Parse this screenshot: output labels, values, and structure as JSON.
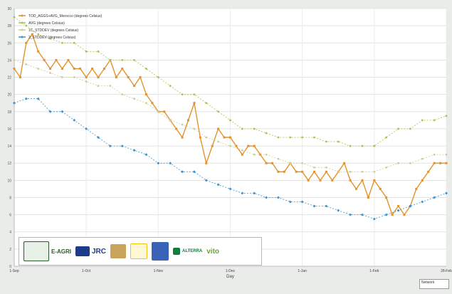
{
  "chart_data": {
    "type": "line",
    "xlabel": "Day",
    "ylabel": "",
    "ylim": [
      0,
      30
    ],
    "x_ticks": [
      "1-Sep",
      "1-Oct",
      "1-Nov",
      "1-Dec",
      "1-Jan",
      "1-Feb",
      "28-Feb"
    ],
    "y_ticks": [
      "0",
      "2",
      "4",
      "6",
      "8",
      "10",
      "12",
      "14",
      "16",
      "18",
      "20",
      "22",
      "24",
      "26",
      "28",
      "30"
    ],
    "grid": true,
    "legend_position": "top-left",
    "series": [
      {
        "name": "TOD_AGGS+AVG_Morocco (degrees Celsius)",
        "color": "#e3922c",
        "marker": "square",
        "points": [
          [
            0,
            23
          ],
          [
            4,
            22
          ],
          [
            8,
            26
          ],
          [
            12,
            27
          ],
          [
            16,
            25
          ],
          [
            20,
            24
          ],
          [
            24,
            23
          ],
          [
            28,
            24
          ],
          [
            32,
            23
          ],
          [
            36,
            24
          ],
          [
            40,
            23
          ],
          [
            44,
            23
          ],
          [
            48,
            22
          ],
          [
            52,
            23
          ],
          [
            56,
            22
          ],
          [
            60,
            23
          ],
          [
            64,
            24
          ],
          [
            68,
            22
          ],
          [
            72,
            23
          ],
          [
            76,
            22
          ],
          [
            80,
            21
          ],
          [
            84,
            22
          ],
          [
            88,
            20
          ],
          [
            92,
            19
          ],
          [
            96,
            18
          ],
          [
            100,
            18
          ],
          [
            104,
            17
          ],
          [
            108,
            16
          ],
          [
            112,
            15
          ],
          [
            116,
            17
          ],
          [
            120,
            19
          ],
          [
            124,
            15
          ],
          [
            128,
            12
          ],
          [
            132,
            14
          ],
          [
            136,
            16
          ],
          [
            140,
            15
          ],
          [
            144,
            15
          ],
          [
            148,
            14
          ],
          [
            152,
            13
          ],
          [
            156,
            14
          ],
          [
            160,
            14
          ],
          [
            164,
            13
          ],
          [
            168,
            12
          ],
          [
            172,
            12
          ],
          [
            176,
            11
          ],
          [
            180,
            11
          ],
          [
            184,
            12
          ],
          [
            188,
            11
          ],
          [
            192,
            11
          ],
          [
            196,
            10
          ],
          [
            200,
            11
          ],
          [
            204,
            10
          ],
          [
            208,
            11
          ],
          [
            212,
            10
          ],
          [
            216,
            11
          ],
          [
            220,
            12
          ],
          [
            224,
            10
          ],
          [
            228,
            9
          ],
          [
            232,
            10
          ],
          [
            236,
            8
          ],
          [
            240,
            10
          ],
          [
            244,
            9
          ],
          [
            248,
            8
          ],
          [
            252,
            6
          ],
          [
            256,
            7
          ],
          [
            260,
            6
          ],
          [
            264,
            7
          ],
          [
            268,
            9
          ],
          [
            272,
            10
          ],
          [
            276,
            11
          ],
          [
            280,
            12
          ],
          [
            284,
            12
          ],
          [
            288,
            12
          ]
        ]
      },
      {
        "name": "AVG (degrees Celsius)",
        "color": "#a9c24f",
        "marker": "circle",
        "points": [
          [
            0,
            29
          ],
          [
            8,
            28
          ],
          [
            16,
            27
          ],
          [
            24,
            26.5
          ],
          [
            32,
            26
          ],
          [
            40,
            26
          ],
          [
            48,
            25
          ],
          [
            56,
            25
          ],
          [
            64,
            24
          ],
          [
            72,
            24
          ],
          [
            80,
            24
          ],
          [
            88,
            23
          ],
          [
            96,
            22
          ],
          [
            104,
            21
          ],
          [
            112,
            20
          ],
          [
            120,
            20
          ],
          [
            128,
            19
          ],
          [
            136,
            18
          ],
          [
            144,
            17
          ],
          [
            152,
            16
          ],
          [
            160,
            16
          ],
          [
            168,
            15.5
          ],
          [
            176,
            15
          ],
          [
            184,
            15
          ],
          [
            192,
            15
          ],
          [
            200,
            15
          ],
          [
            208,
            14.5
          ],
          [
            216,
            14.5
          ],
          [
            224,
            14
          ],
          [
            232,
            14
          ],
          [
            240,
            14
          ],
          [
            248,
            15
          ],
          [
            256,
            16
          ],
          [
            264,
            16
          ],
          [
            272,
            17
          ],
          [
            280,
            17
          ],
          [
            288,
            17.5
          ]
        ]
      },
      {
        "name": "1C_STDDEV (degrees Celsius)",
        "color": "#cbcf96",
        "marker": "circle",
        "points": [
          [
            0,
            24
          ],
          [
            8,
            23.5
          ],
          [
            16,
            23
          ],
          [
            24,
            22.5
          ],
          [
            32,
            22
          ],
          [
            40,
            22
          ],
          [
            48,
            21.5
          ],
          [
            56,
            21
          ],
          [
            64,
            21
          ],
          [
            72,
            20
          ],
          [
            80,
            19.5
          ],
          [
            88,
            19
          ],
          [
            96,
            18
          ],
          [
            104,
            17
          ],
          [
            112,
            16.5
          ],
          [
            120,
            16
          ],
          [
            128,
            15
          ],
          [
            136,
            14.5
          ],
          [
            144,
            14
          ],
          [
            152,
            13.5
          ],
          [
            160,
            13
          ],
          [
            168,
            13
          ],
          [
            176,
            12.5
          ],
          [
            184,
            12
          ],
          [
            192,
            12
          ],
          [
            200,
            11.5
          ],
          [
            208,
            11.5
          ],
          [
            216,
            11
          ],
          [
            224,
            11
          ],
          [
            232,
            11
          ],
          [
            240,
            11
          ],
          [
            248,
            11.5
          ],
          [
            256,
            12
          ],
          [
            264,
            12
          ],
          [
            272,
            12.5
          ],
          [
            280,
            13
          ],
          [
            288,
            13
          ]
        ]
      },
      {
        "name": "2_STDDEV (degrees Celsius)",
        "color": "#3e93d0",
        "marker": "diamond",
        "points": [
          [
            0,
            19
          ],
          [
            8,
            19.5
          ],
          [
            16,
            19.5
          ],
          [
            24,
            18
          ],
          [
            32,
            18
          ],
          [
            40,
            17
          ],
          [
            48,
            16
          ],
          [
            56,
            15
          ],
          [
            64,
            14
          ],
          [
            72,
            14
          ],
          [
            80,
            13.5
          ],
          [
            88,
            13
          ],
          [
            96,
            12
          ],
          [
            104,
            12
          ],
          [
            112,
            11
          ],
          [
            120,
            11
          ],
          [
            128,
            10
          ],
          [
            136,
            9.5
          ],
          [
            144,
            9
          ],
          [
            152,
            8.5
          ],
          [
            160,
            8.5
          ],
          [
            168,
            8
          ],
          [
            176,
            8
          ],
          [
            184,
            7.5
          ],
          [
            192,
            7.5
          ],
          [
            200,
            7
          ],
          [
            208,
            7
          ],
          [
            216,
            6.5
          ],
          [
            224,
            6
          ],
          [
            232,
            6
          ],
          [
            240,
            5.5
          ],
          [
            248,
            6
          ],
          [
            256,
            6.5
          ],
          [
            264,
            7
          ],
          [
            272,
            7.5
          ],
          [
            280,
            8
          ],
          [
            288,
            8.5
          ]
        ]
      }
    ]
  },
  "logos": [
    {
      "name": "E-AGRI",
      "color": "#2b5a2b"
    },
    {
      "name": "JRC",
      "sub": "EUROPEAN COMMISSION",
      "color": "#1d3b8a"
    },
    {
      "name": "",
      "color": "#c8a45a"
    },
    {
      "name": "",
      "color": "#f1c40f"
    },
    {
      "name": "",
      "color": "#3a63b8"
    },
    {
      "name": "ALTERRA",
      "sub": "WAGENINGEN UR",
      "color": "#0f7d3c"
    },
    {
      "name": "vito",
      "color": "#6aa62c"
    }
  ],
  "tooltip": "Network"
}
